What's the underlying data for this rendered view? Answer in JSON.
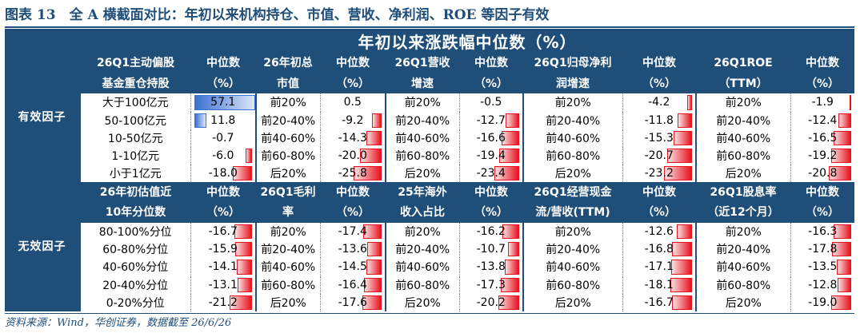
{
  "title": "图表 13　全 A 横截面对比：年初以来机构持仓、市值、营收、净利润、ROE 等因子有效",
  "banner": "年初以来涨跌幅中位数（%）",
  "source": "资料来源：Wind，华创证券，数据截至 26/6/26",
  "colors": {
    "navy": "#1f4e79",
    "neg_bar": "#e8131f",
    "pos_bar": "#3b6fd1"
  },
  "groups": [
    {
      "name": "有效因子",
      "header_lines": [
        [
          "26Q1主动偏股",
          "中位数",
          "26年初总",
          "中位数",
          "26Q1营收",
          "中位数",
          "26Q1归母净利",
          "中位数",
          "26Q1ROE",
          "中位数"
        ],
        [
          "基金重仓持股",
          "（%）",
          "市值",
          "（%）",
          "增速",
          "（%）",
          "润增速",
          "（%）",
          "（TTM）",
          "（%）"
        ]
      ],
      "factors": [
        {
          "labels": [
            "大于100亿元",
            "50-100亿元",
            "10-50亿元",
            "1-10亿元",
            "小于1亿元"
          ],
          "values": [
            "57.1",
            "11.8",
            "-0.7",
            "-6.0",
            "-18.0"
          ]
        },
        {
          "labels": [
            "前20%",
            "前20-40%",
            "前40-60%",
            "前60-80%",
            "后20%"
          ],
          "values": [
            "0.5",
            "-9.2",
            "-14.3",
            "-20.0",
            "-25.8"
          ]
        },
        {
          "labels": [
            "前20%",
            "前20-40%",
            "前40-60%",
            "前60-80%",
            "后20%"
          ],
          "values": [
            "-0.5",
            "-12.7",
            "-16.6",
            "-19.4",
            "-23.4"
          ]
        },
        {
          "labels": [
            "前20%",
            "前20-40%",
            "前40-60%",
            "前60-80%",
            "后20%"
          ],
          "values": [
            "-4.2",
            "-11.8",
            "-15.3",
            "-20.7",
            "-23.2"
          ]
        },
        {
          "labels": [
            "前20%",
            "前20-40%",
            "前40-60%",
            "前60-80%",
            "后20%"
          ],
          "values": [
            "-1.9",
            "-12.4",
            "-16.5",
            "-19.2",
            "-20.8"
          ]
        }
      ]
    },
    {
      "name": "无效因子",
      "header_lines": [
        [
          "26年初估值近",
          "中位数",
          "26Q1毛利",
          "中位数",
          "25年海外",
          "中位数",
          "26Q1经营现金",
          "中位数",
          "26Q1股息率",
          "中位数"
        ],
        [
          "10年分位数",
          "（%）",
          "率",
          "（%）",
          "收入占比",
          "（%）",
          "流/营收(TTM)",
          "（%）",
          "（近12个月）",
          "（%）"
        ]
      ],
      "factors": [
        {
          "labels": [
            "80-100%分位",
            "60-80%分位",
            "40-60%分位",
            "20-40%分位",
            "0-20%分位"
          ],
          "values": [
            "-16.7",
            "-15.9",
            "-14.1",
            "-13.1",
            "-21.2"
          ]
        },
        {
          "labels": [
            "前20%",
            "前20-40%",
            "前40-60%",
            "前60-80%",
            "后20%"
          ],
          "values": [
            "-17.4",
            "-13.6",
            "-14.5",
            "-16.4",
            "-17.6"
          ]
        },
        {
          "labels": [
            "前20%",
            "前20-40%",
            "前40-60%",
            "前60-80%",
            "后20%"
          ],
          "values": [
            "-16.2",
            "-10.7",
            "-13.8",
            "-17.3",
            "-20.2"
          ]
        },
        {
          "labels": [
            "前20%",
            "前20-40%",
            "前40-60%",
            "前60-80%",
            "后20%"
          ],
          "values": [
            "-12.6",
            "-16.8",
            "-17.1",
            "-18.1",
            "-16.7"
          ]
        },
        {
          "labels": [
            "前20%",
            "前20-40%",
            "前40-60%",
            "前60-80%",
            "后20%"
          ],
          "values": [
            "-16.3",
            "-17.8",
            "-13.5",
            "-12.8",
            "-19.0"
          ]
        }
      ]
    }
  ]
}
